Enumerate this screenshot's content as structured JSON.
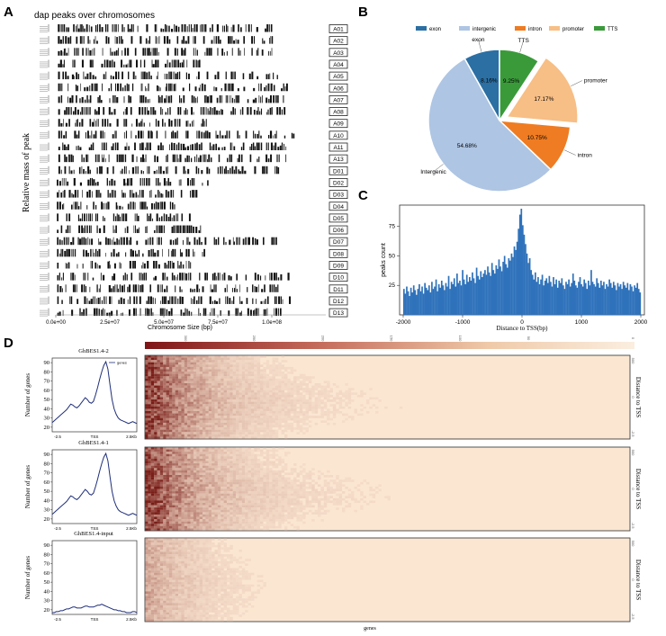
{
  "panels": {
    "A": {
      "letter": "A"
    },
    "B": {
      "letter": "B"
    },
    "C": {
      "letter": "C"
    },
    "D": {
      "letter": "D"
    }
  },
  "chart_data": [
    {
      "panel": "A",
      "type": "bar",
      "title": "dap peaks over chromosomes",
      "xlabel": "Chromosome Size (bp)",
      "ylabel": "Relative mass of peak",
      "xticks": [
        "0.0e+00",
        "2.5e+07",
        "5.0e+07",
        "7.5e+07",
        "1.0e+08"
      ],
      "xtick_values": [
        0,
        25000000,
        50000000,
        75000000,
        100000000
      ],
      "xlim": [
        0,
        125000000
      ],
      "chromosomes": [
        {
          "name": "A01",
          "length": 100000000
        },
        {
          "name": "A02",
          "length": 100000000
        },
        {
          "name": "A03",
          "length": 102000000
        },
        {
          "name": "A04",
          "length": 68000000
        },
        {
          "name": "A05",
          "length": 103000000
        },
        {
          "name": "A06",
          "length": 108000000
        },
        {
          "name": "A07",
          "length": 106000000
        },
        {
          "name": "A08",
          "length": 108000000
        },
        {
          "name": "A09",
          "length": 70000000
        },
        {
          "name": "A10",
          "length": 110000000
        },
        {
          "name": "A11",
          "length": 107000000
        },
        {
          "name": "A13",
          "length": 108000000
        },
        {
          "name": "D01",
          "length": 103000000
        },
        {
          "name": "D02",
          "length": 72000000
        },
        {
          "name": "D03",
          "length": 66000000
        },
        {
          "name": "D04",
          "length": 55000000
        },
        {
          "name": "D05",
          "length": 64000000
        },
        {
          "name": "D06",
          "length": 68000000
        },
        {
          "name": "D07",
          "length": 103000000
        },
        {
          "name": "D08",
          "length": 69000000
        },
        {
          "name": "D09",
          "length": 64000000
        },
        {
          "name": "D10",
          "length": 108000000
        },
        {
          "name": "D11",
          "length": 106000000
        },
        {
          "name": "D12",
          "length": 108000000
        },
        {
          "name": "D13",
          "length": 105000000
        }
      ]
    },
    {
      "panel": "B",
      "type": "pie",
      "legend": [
        "exon",
        "intergenic",
        "intron",
        "promoter",
        "TTS"
      ],
      "legend_position": "top",
      "slices": [
        {
          "label": "exon",
          "value": 8.16,
          "text": "8.16%",
          "color": "#2b6fa3"
        },
        {
          "label": "TTS",
          "value": 9.25,
          "text": "9.25%",
          "color": "#3a9a3a"
        },
        {
          "label": "promoter",
          "value": 17.17,
          "text": "17.17%",
          "color": "#f7be85",
          "exploded": true
        },
        {
          "label": "intron",
          "value": 10.75,
          "text": "10.75%",
          "color": "#ef7c22"
        },
        {
          "label": "Intergenic",
          "value": 54.68,
          "text": "54.68%",
          "color": "#aec5e3"
        }
      ]
    },
    {
      "panel": "C",
      "type": "bar",
      "xlabel": "Distance to TSS(bp)",
      "ylabel": "peaks count",
      "xlim": [
        -2000,
        2000
      ],
      "ylim": [
        0,
        90
      ],
      "xticks": [
        "-2000",
        "-1000",
        "0",
        "1000",
        "2000"
      ],
      "xtick_values": [
        -2000,
        -1000,
        0,
        1000,
        2000
      ],
      "yticks": [
        "25",
        "50",
        "75"
      ],
      "ytick_values": [
        25,
        50,
        75
      ],
      "bin_width": 25,
      "bins_start": -2000,
      "values": [
        22,
        18,
        24,
        20,
        16,
        23,
        19,
        25,
        21,
        17,
        22,
        26,
        20,
        24,
        18,
        27,
        23,
        21,
        25,
        19,
        28,
        22,
        24,
        30,
        20,
        26,
        23,
        29,
        25,
        21,
        27,
        24,
        33,
        22,
        28,
        26,
        31,
        24,
        35,
        27,
        29,
        25,
        38,
        30,
        26,
        34,
        28,
        32,
        29,
        36,
        31,
        27,
        40,
        33,
        30,
        37,
        32,
        35,
        38,
        34,
        41,
        36,
        33,
        44,
        38,
        35,
        42,
        39,
        47,
        41,
        37,
        45,
        50,
        43,
        40,
        48,
        46,
        52,
        49,
        58,
        55,
        62,
        73,
        85,
        90,
        76,
        68,
        60,
        52,
        44,
        48,
        38,
        34,
        30,
        36,
        28,
        32,
        26,
        30,
        34,
        25,
        29,
        31,
        27,
        33,
        28,
        24,
        32,
        26,
        30,
        23,
        29,
        27,
        31,
        25,
        22,
        28,
        26,
        30,
        24,
        27,
        35,
        29,
        25,
        23,
        28,
        32,
        26,
        24,
        30,
        27,
        22,
        29,
        25,
        38,
        28,
        26,
        24,
        31,
        27,
        23,
        29,
        25,
        28,
        22,
        26,
        24,
        30,
        27,
        23,
        28,
        25,
        21,
        27,
        24,
        26,
        22,
        28,
        25,
        23,
        27,
        21,
        26,
        24,
        20,
        25,
        23,
        27,
        22,
        19
      ]
    },
    {
      "panel": "D",
      "type": "line",
      "ylabel": "Number of genes",
      "xticks": [
        "-2.5",
        "TSS",
        "2.5Kb"
      ],
      "yticks": [
        "20",
        "30",
        "40",
        "50",
        "60",
        "70",
        "80",
        "90"
      ],
      "ylim": [
        15,
        95
      ],
      "legend_entry": "genes",
      "series": [
        {
          "name": "GhBES1.4-2",
          "values": [
            25,
            27,
            29,
            31,
            33,
            35,
            37,
            39,
            42,
            45,
            44,
            42,
            41,
            43,
            46,
            49,
            52,
            50,
            47,
            46,
            48,
            55,
            63,
            72,
            80,
            87,
            91,
            83,
            66,
            50,
            40,
            34,
            30,
            28,
            27,
            26,
            25,
            24,
            25,
            26,
            25,
            24
          ]
        },
        {
          "name": "GhBES1.4-1",
          "values": [
            25,
            27,
            29,
            31,
            33,
            35,
            37,
            39,
            42,
            45,
            44,
            42,
            41,
            43,
            46,
            49,
            52,
            50,
            47,
            46,
            48,
            55,
            63,
            72,
            80,
            87,
            91,
            83,
            66,
            50,
            40,
            34,
            30,
            28,
            27,
            26,
            25,
            24,
            25,
            26,
            25,
            24
          ]
        },
        {
          "name": "GhBES1.4-input",
          "values": [
            17,
            17,
            18,
            18,
            19,
            19,
            20,
            21,
            21,
            22,
            23,
            23,
            22,
            22,
            22,
            23,
            24,
            24,
            23,
            23,
            23,
            24,
            25,
            25,
            26,
            25,
            24,
            23,
            22,
            21,
            20,
            20,
            19,
            19,
            18,
            18,
            17,
            17,
            17,
            18,
            18,
            17
          ]
        }
      ],
      "heatmap": {
        "colorbar_ticks": [
          "300",
          "250",
          "200",
          "150",
          "100",
          "50",
          "0"
        ],
        "row_axis_label": "Distance to TSS",
        "row_ticks": [
          "500",
          "0",
          "-2.5"
        ],
        "xlabel": "genes",
        "intensity": [
          1.0,
          1.0,
          0.35
        ]
      }
    }
  ]
}
